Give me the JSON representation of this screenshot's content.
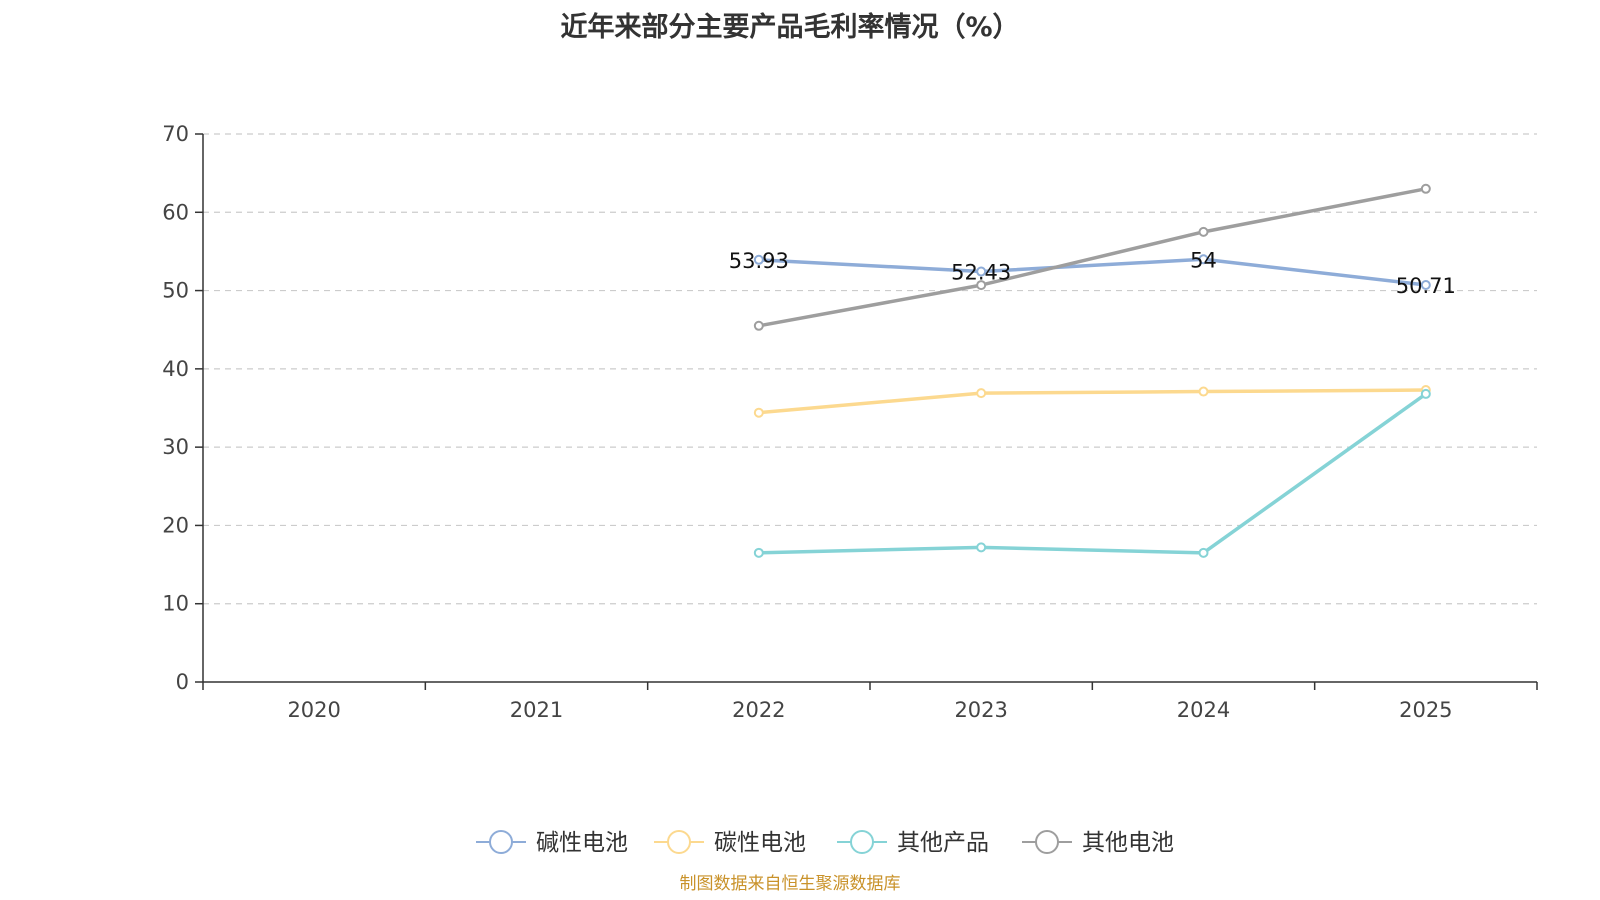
{
  "chart_data": {
    "type": "line",
    "title": "近年来部分主要产品毛利率情况（%）",
    "categories": [
      "2020",
      "2021",
      "2022",
      "2023",
      "2024",
      "2025"
    ],
    "ylim": [
      0,
      70
    ],
    "yticks": [
      "0",
      "10",
      "20",
      "30",
      "40",
      "50",
      "60",
      "70"
    ],
    "grid": true,
    "legend_position": "bottom",
    "series": [
      {
        "name": "碱性电池",
        "color": "#8eacd8",
        "values": [
          null,
          null,
          53.93,
          52.43,
          54,
          50.71
        ],
        "labels": [
          null,
          null,
          "53.93",
          "52.43",
          "54",
          "50.71"
        ]
      },
      {
        "name": "碳性电池",
        "color": "#fcd98f",
        "values": [
          null,
          null,
          34.4,
          36.9,
          37.1,
          37.3
        ]
      },
      {
        "name": "其他产品",
        "color": "#85d3d6",
        "values": [
          null,
          null,
          16.5,
          17.2,
          16.5,
          36.8
        ]
      },
      {
        "name": "其他电池",
        "color": "#9e9e9e",
        "values": [
          null,
          null,
          45.5,
          50.7,
          57.5,
          63.0
        ]
      }
    ],
    "source": "制图数据来自恒生聚源数据库"
  }
}
